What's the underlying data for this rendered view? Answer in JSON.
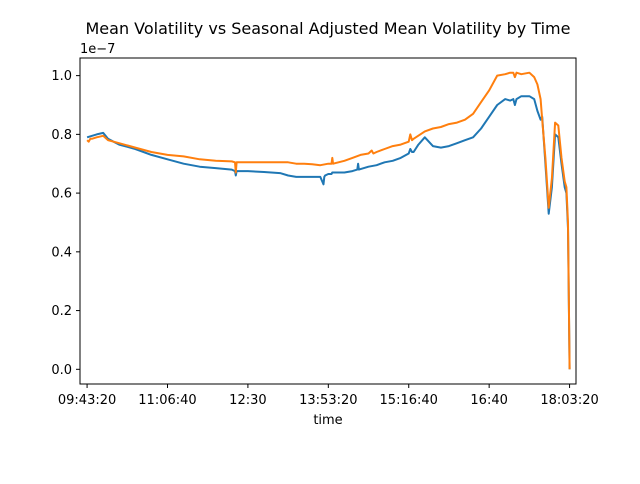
{
  "chart_data": {
    "type": "line",
    "title": "Mean Volatility vs Seasonal Adjusted Mean Volatility by Time",
    "xlabel": "time",
    "ylabel": "",
    "y_multiplier_label": "1e−7",
    "x_unit": "seconds since midnight",
    "xlim": [
      34560,
      65400
    ],
    "ylim": [
      -0.05,
      1.06
    ],
    "x_ticks": [
      {
        "value": 35000,
        "label": "09:43:20"
      },
      {
        "value": 40000,
        "label": "11:06:40"
      },
      {
        "value": 45000,
        "label": "12:30"
      },
      {
        "value": 50000,
        "label": "13:53:20"
      },
      {
        "value": 55000,
        "label": "15:16:40"
      },
      {
        "value": 60000,
        "label": "16:40"
      },
      {
        "value": 65000,
        "label": "18:03:20"
      }
    ],
    "y_ticks": [
      {
        "value": 0.0,
        "label": "0.0"
      },
      {
        "value": 0.2,
        "label": "0.2"
      },
      {
        "value": 0.4,
        "label": "0.4"
      },
      {
        "value": 0.6,
        "label": "0.6"
      },
      {
        "value": 0.8,
        "label": "0.8"
      },
      {
        "value": 1.0,
        "label": "1.0"
      }
    ],
    "grid": false,
    "legend": "none",
    "series": [
      {
        "color": "#1f77b4",
        "x": [
          35000,
          35600,
          36000,
          36300,
          37000,
          38000,
          39000,
          40000,
          41000,
          42000,
          43000,
          44000,
          44200,
          44250,
          44300,
          45000,
          46000,
          47000,
          47500,
          48000,
          48500,
          49000,
          49500,
          49700,
          49750,
          49800,
          50000,
          50200,
          50250,
          50300,
          51000,
          51500,
          51800,
          51850,
          51900,
          52500,
          53000,
          53500,
          54000,
          54500,
          55000,
          55100,
          55200,
          55300,
          55600,
          56000,
          56500,
          57000,
          57500,
          58000,
          58500,
          59000,
          59500,
          60000,
          60500,
          61000,
          61300,
          61500,
          61600,
          61700,
          62000,
          62500,
          62800,
          63000,
          63200,
          63300,
          63500,
          63700,
          63900,
          64100,
          64300,
          64500,
          64700,
          64800,
          64900,
          65000
        ],
        "y": [
          0.79,
          0.8,
          0.805,
          0.785,
          0.765,
          0.75,
          0.73,
          0.715,
          0.7,
          0.69,
          0.685,
          0.68,
          0.675,
          0.66,
          0.675,
          0.675,
          0.672,
          0.668,
          0.66,
          0.655,
          0.655,
          0.655,
          0.655,
          0.63,
          0.655,
          0.66,
          0.665,
          0.665,
          0.67,
          0.67,
          0.67,
          0.675,
          0.68,
          0.7,
          0.68,
          0.69,
          0.695,
          0.705,
          0.71,
          0.72,
          0.735,
          0.75,
          0.74,
          0.74,
          0.765,
          0.79,
          0.76,
          0.755,
          0.76,
          0.77,
          0.78,
          0.79,
          0.82,
          0.86,
          0.9,
          0.92,
          0.915,
          0.92,
          0.9,
          0.92,
          0.93,
          0.93,
          0.92,
          0.88,
          0.85,
          0.86,
          0.7,
          0.53,
          0.62,
          0.8,
          0.79,
          0.7,
          0.62,
          0.6,
          0.48,
          0.0
        ]
      },
      {
        "color": "#ff7f0e",
        "x": [
          35000,
          35100,
          35200,
          35300,
          35600,
          36000,
          36300,
          37000,
          38000,
          39000,
          40000,
          41000,
          42000,
          43000,
          44000,
          44200,
          44250,
          44300,
          45000,
          46000,
          47000,
          47500,
          48000,
          48500,
          49000,
          49500,
          50000,
          50200,
          50250,
          50300,
          51000,
          51500,
          52000,
          52500,
          52700,
          52750,
          52800,
          53000,
          53500,
          54000,
          54500,
          55000,
          55100,
          55200,
          55300,
          56000,
          56500,
          57000,
          57500,
          58000,
          58500,
          59000,
          59500,
          60000,
          60500,
          61000,
          61300,
          61500,
          61600,
          61700,
          62000,
          62500,
          62800,
          63000,
          63200,
          63300,
          63500,
          63700,
          63900,
          64100,
          64300,
          64500,
          64700,
          64800,
          64900,
          65000
        ],
        "y": [
          0.78,
          0.775,
          0.785,
          0.785,
          0.79,
          0.795,
          0.78,
          0.77,
          0.755,
          0.74,
          0.73,
          0.725,
          0.715,
          0.71,
          0.708,
          0.705,
          0.67,
          0.705,
          0.705,
          0.705,
          0.705,
          0.705,
          0.7,
          0.7,
          0.698,
          0.695,
          0.7,
          0.7,
          0.72,
          0.7,
          0.71,
          0.72,
          0.73,
          0.735,
          0.745,
          0.74,
          0.735,
          0.74,
          0.75,
          0.76,
          0.765,
          0.775,
          0.8,
          0.78,
          0.785,
          0.81,
          0.82,
          0.825,
          0.835,
          0.84,
          0.85,
          0.87,
          0.91,
          0.95,
          1.0,
          1.005,
          1.01,
          1.01,
          0.995,
          1.01,
          1.005,
          1.01,
          0.995,
          0.97,
          0.92,
          0.85,
          0.72,
          0.55,
          0.65,
          0.84,
          0.83,
          0.72,
          0.64,
          0.62,
          0.5,
          0.0
        ]
      }
    ]
  }
}
